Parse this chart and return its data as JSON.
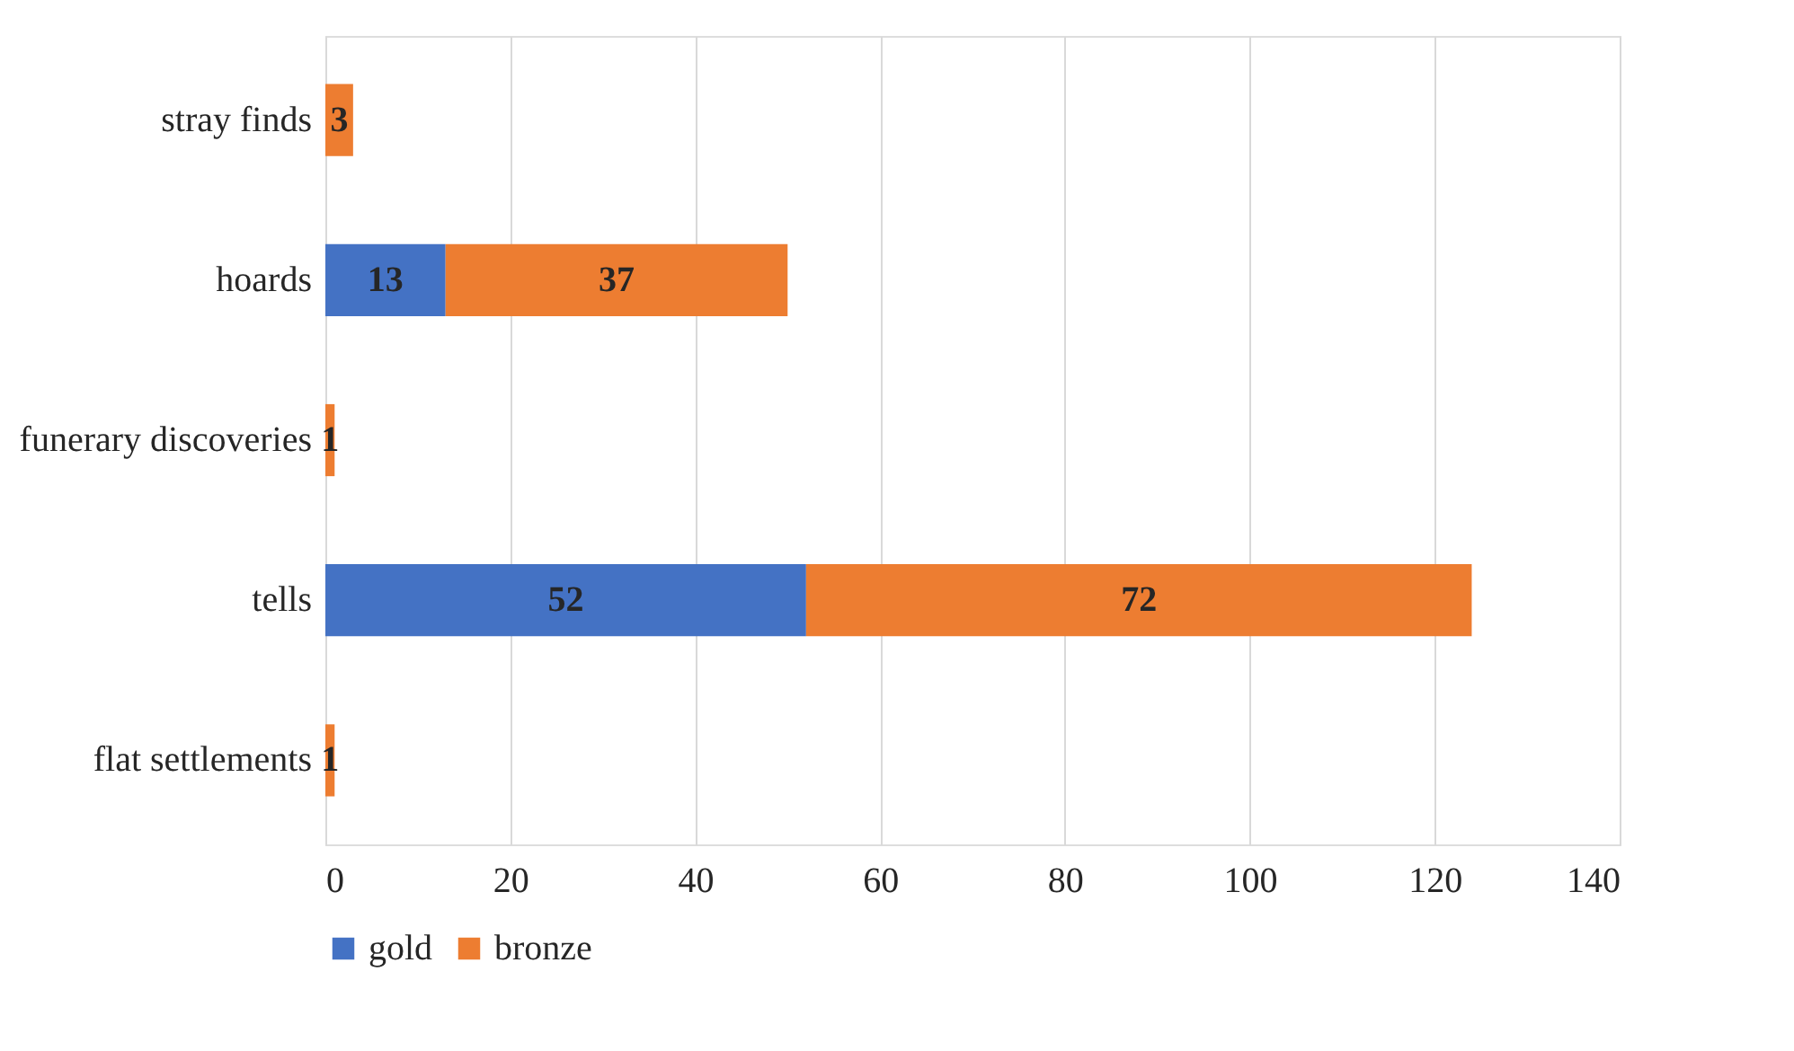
{
  "chart_data": {
    "type": "bar",
    "orientation": "horizontal",
    "stacked": true,
    "categories": [
      "stray finds",
      "hoards",
      "funerary discoveries",
      "tells",
      "flat settlements"
    ],
    "series": [
      {
        "name": "gold",
        "color": "#4472c4",
        "values": [
          null,
          13,
          null,
          52,
          null
        ]
      },
      {
        "name": "bronze",
        "color": "#ed7d31",
        "values": [
          3,
          37,
          1,
          72,
          1
        ]
      }
    ],
    "xlim": [
      0,
      140
    ],
    "xticks": [
      0,
      20,
      40,
      60,
      80,
      100,
      120,
      140
    ],
    "grid": "x",
    "legend": "bottom",
    "data_labels": true
  }
}
